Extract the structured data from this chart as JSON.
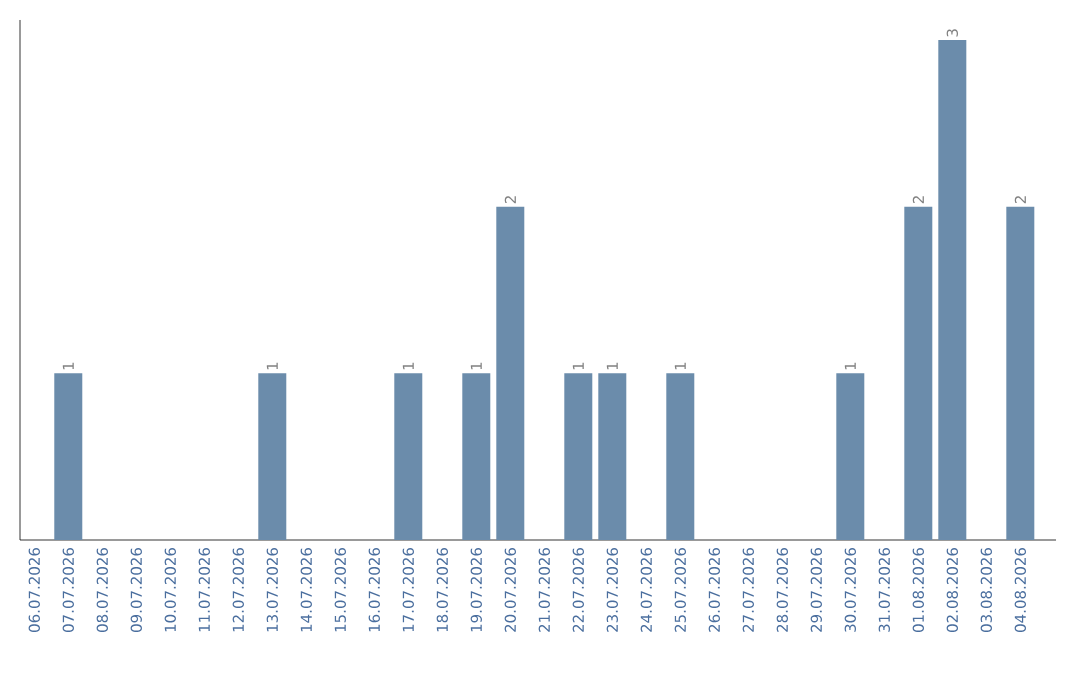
{
  "chart_data": {
    "type": "bar",
    "categories": [
      "06.07.2026",
      "07.07.2026",
      "08.07.2026",
      "09.07.2026",
      "10.07.2026",
      "11.07.2026",
      "12.07.2026",
      "13.07.2026",
      "14.07.2026",
      "15.07.2026",
      "16.07.2026",
      "17.07.2026",
      "18.07.2026",
      "19.07.2026",
      "20.07.2026",
      "21.07.2026",
      "22.07.2026",
      "23.07.2026",
      "24.07.2026",
      "25.07.2026",
      "26.07.2026",
      "27.07.2026",
      "28.07.2026",
      "29.07.2026",
      "30.07.2026",
      "31.07.2026",
      "01.08.2026",
      "02.08.2026",
      "03.08.2026",
      "04.08.2026"
    ],
    "values": [
      0,
      1,
      0,
      0,
      0,
      0,
      0,
      1,
      0,
      0,
      0,
      1,
      0,
      1,
      2,
      0,
      1,
      1,
      0,
      1,
      0,
      0,
      0,
      0,
      1,
      0,
      2,
      3,
      0,
      2
    ],
    "value_labels": [
      null,
      "1",
      null,
      null,
      null,
      null,
      null,
      "1",
      null,
      null,
      null,
      "1",
      null,
      "1",
      "2",
      null,
      "1",
      "1",
      null,
      "1",
      null,
      null,
      null,
      null,
      "1",
      null,
      "2",
      "3",
      null,
      "2"
    ],
    "color": "#6b8cab",
    "grid": false,
    "tick_labels": "x"
  }
}
